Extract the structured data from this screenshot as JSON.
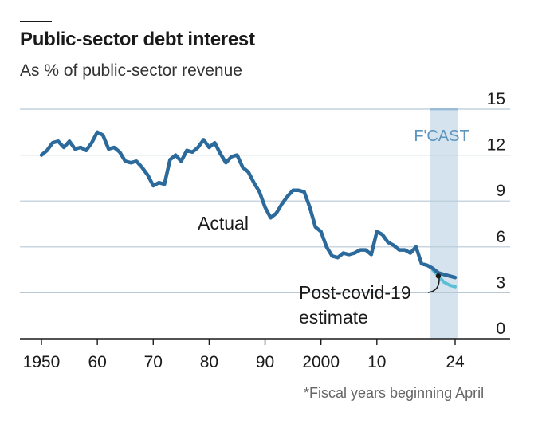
{
  "header": {
    "title": "Public-sector debt interest",
    "subtitle": "As % of public-sector revenue"
  },
  "footnote": "*Fiscal years beginning April",
  "colors": {
    "actual": "#2b6a9b",
    "estimate": "#5bbfd6",
    "forecast_band": "#d4e3ee",
    "forecast_top": "#6aa6cf",
    "forecast_label": "#5b95bf",
    "gridline": "#b7c9d6",
    "axis": "#1a1a1a"
  },
  "chart_data": {
    "type": "line",
    "title": "Public-sector debt interest",
    "subtitle": "As % of public-sector revenue",
    "xlabel": "",
    "ylabel": "",
    "xlim": [
      1950,
      2024
    ],
    "ylim": [
      0,
      15
    ],
    "y_ticks": [
      0,
      3,
      6,
      9,
      12,
      15
    ],
    "y_tick_labels": [
      "0",
      "3",
      "6",
      "9",
      "12",
      "15"
    ],
    "y_axis_side": "right",
    "x_ticks": [
      1950,
      1960,
      1970,
      1980,
      1990,
      2000,
      2010,
      2024
    ],
    "x_tick_labels": [
      "1950",
      "60",
      "70",
      "80",
      "90",
      "2000",
      "10",
      "24"
    ],
    "grid": true,
    "forecast": {
      "label": "F'CAST",
      "from": 2019.5,
      "to": 2024.5
    },
    "annotations": [
      {
        "text": "Actual",
        "series": "Actual"
      },
      {
        "text": "Post-covid-19\nestimate",
        "series": "Post-covid-19 estimate"
      }
    ],
    "series": [
      {
        "name": "Actual",
        "x": [
          1950,
          1951,
          1952,
          1953,
          1954,
          1955,
          1956,
          1957,
          1958,
          1959,
          1960,
          1961,
          1962,
          1963,
          1964,
          1965,
          1966,
          1967,
          1968,
          1969,
          1970,
          1971,
          1972,
          1973,
          1974,
          1975,
          1976,
          1977,
          1978,
          1979,
          1980,
          1981,
          1982,
          1983,
          1984,
          1985,
          1986,
          1987,
          1988,
          1989,
          1990,
          1991,
          1992,
          1993,
          1994,
          1995,
          1996,
          1997,
          1998,
          1999,
          2000,
          2001,
          2002,
          2003,
          2004,
          2005,
          2006,
          2007,
          2008,
          2009,
          2010,
          2011,
          2012,
          2013,
          2014,
          2015,
          2016,
          2017,
          2018,
          2019,
          2020,
          2021,
          2022,
          2023,
          2024
        ],
        "y": [
          12.0,
          12.3,
          12.8,
          12.9,
          12.5,
          12.9,
          12.4,
          12.5,
          12.3,
          12.8,
          13.5,
          13.3,
          12.4,
          12.5,
          12.2,
          11.6,
          11.5,
          11.6,
          11.2,
          10.7,
          10.0,
          10.2,
          10.1,
          11.7,
          12.0,
          11.6,
          12.3,
          12.2,
          12.5,
          13.0,
          12.5,
          12.8,
          12.1,
          11.5,
          11.9,
          12.0,
          11.2,
          10.9,
          10.2,
          9.6,
          8.6,
          7.9,
          8.2,
          8.8,
          9.3,
          9.7,
          9.7,
          9.6,
          8.6,
          7.3,
          7.0,
          6.0,
          5.4,
          5.3,
          5.6,
          5.5,
          5.6,
          5.8,
          5.8,
          5.5,
          7.0,
          6.8,
          6.3,
          6.1,
          5.8,
          5.8,
          5.6,
          6.0,
          4.9,
          4.8,
          4.6,
          4.3,
          4.2,
          4.1,
          4.0
        ]
      },
      {
        "name": "Post-covid-19 estimate",
        "x": [
          2020,
          2021,
          2022,
          2023,
          2024
        ],
        "y": [
          4.5,
          4.1,
          3.7,
          3.5,
          3.4
        ]
      }
    ]
  }
}
